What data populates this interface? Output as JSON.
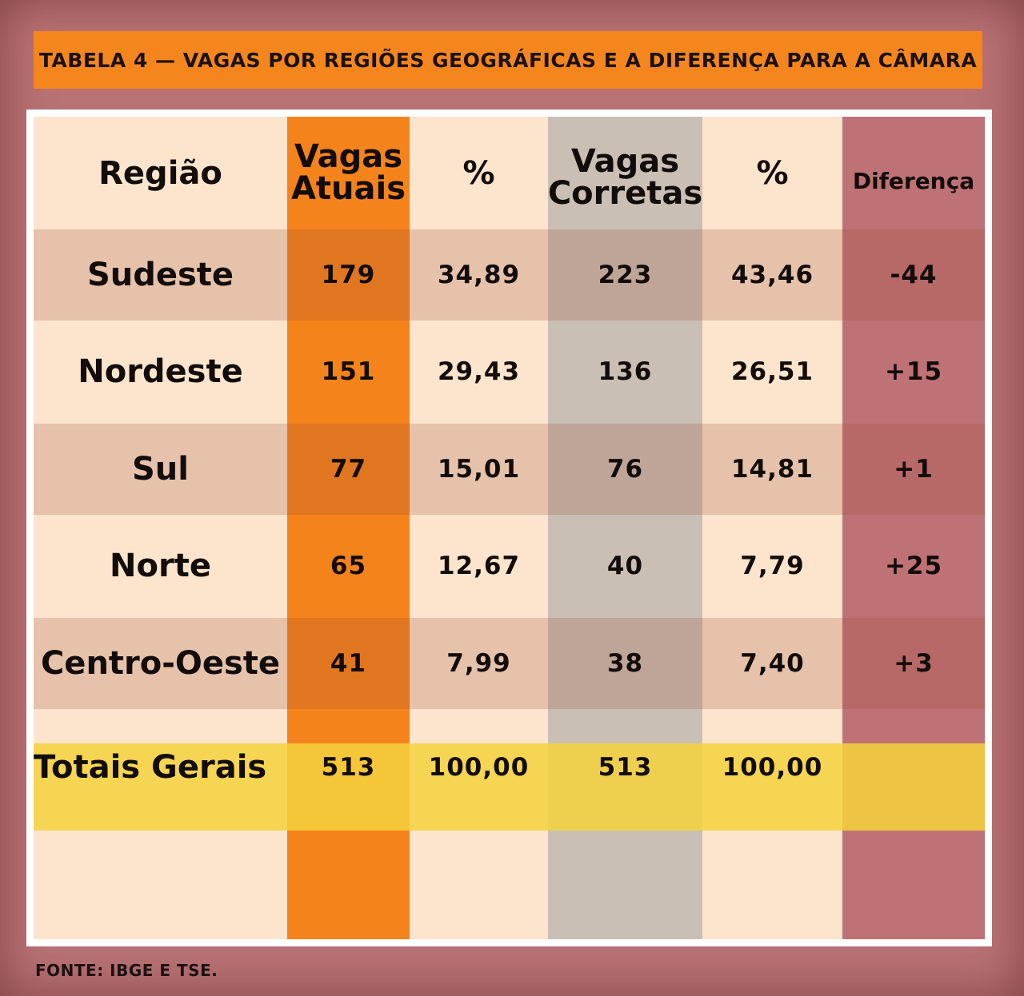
{
  "title": "TABELA 4 — VAGAS POR REGIÕES GEOGRÁFICAS E A DIFERENÇA PARA A CÂMARA",
  "source": "FONTE: IBGE E TSE.",
  "colors": {
    "background": "#b87274",
    "title_bar": "#f5861e",
    "table_base": "#fde5cd",
    "vagas_atuais_col": "#f5831c",
    "vagas_corretas_col": "#c9bfb4",
    "diferenca_col": "#bf7275",
    "totals_row": "#f6d74f"
  },
  "chart_data": {
    "type": "table",
    "title": "TABELA 4 — VAGAS POR REGIÕES GEOGRÁFICAS E A DIFERENÇA PARA A CÂMARA",
    "columns": {
      "regiao": "Região",
      "vagas_atuais_line1": "Vagas",
      "vagas_atuais_line2": "Atuais",
      "pct1": "%",
      "vagas_corretas_line1": "Vagas",
      "vagas_corretas_line2": "Corretas",
      "pct2": "%",
      "diferenca": "Diferença"
    },
    "rows": [
      {
        "regiao": "Sudeste",
        "vagas_atuais": "179",
        "pct_atuais": "34,89",
        "vagas_corretas": "223",
        "pct_corretas": "43,46",
        "diferenca": "-44"
      },
      {
        "regiao": "Nordeste",
        "vagas_atuais": "151",
        "pct_atuais": "29,43",
        "vagas_corretas": "136",
        "pct_corretas": "26,51",
        "diferenca": "+15"
      },
      {
        "regiao": "Sul",
        "vagas_atuais": "77",
        "pct_atuais": "15,01",
        "vagas_corretas": "76",
        "pct_corretas": "14,81",
        "diferenca": "+1"
      },
      {
        "regiao": "Norte",
        "vagas_atuais": "65",
        "pct_atuais": "12,67",
        "vagas_corretas": "40",
        "pct_corretas": "7,79",
        "diferenca": "+25"
      },
      {
        "regiao": "Centro-Oeste",
        "vagas_atuais": "41",
        "pct_atuais": "7,99",
        "vagas_corretas": "38",
        "pct_corretas": "7,40",
        "diferenca": "+3"
      }
    ],
    "totals": {
      "regiao": "Totais Gerais",
      "vagas_atuais": "513",
      "pct_atuais": "100,00",
      "vagas_corretas": "513",
      "pct_corretas": "100,00",
      "diferenca": ""
    }
  }
}
